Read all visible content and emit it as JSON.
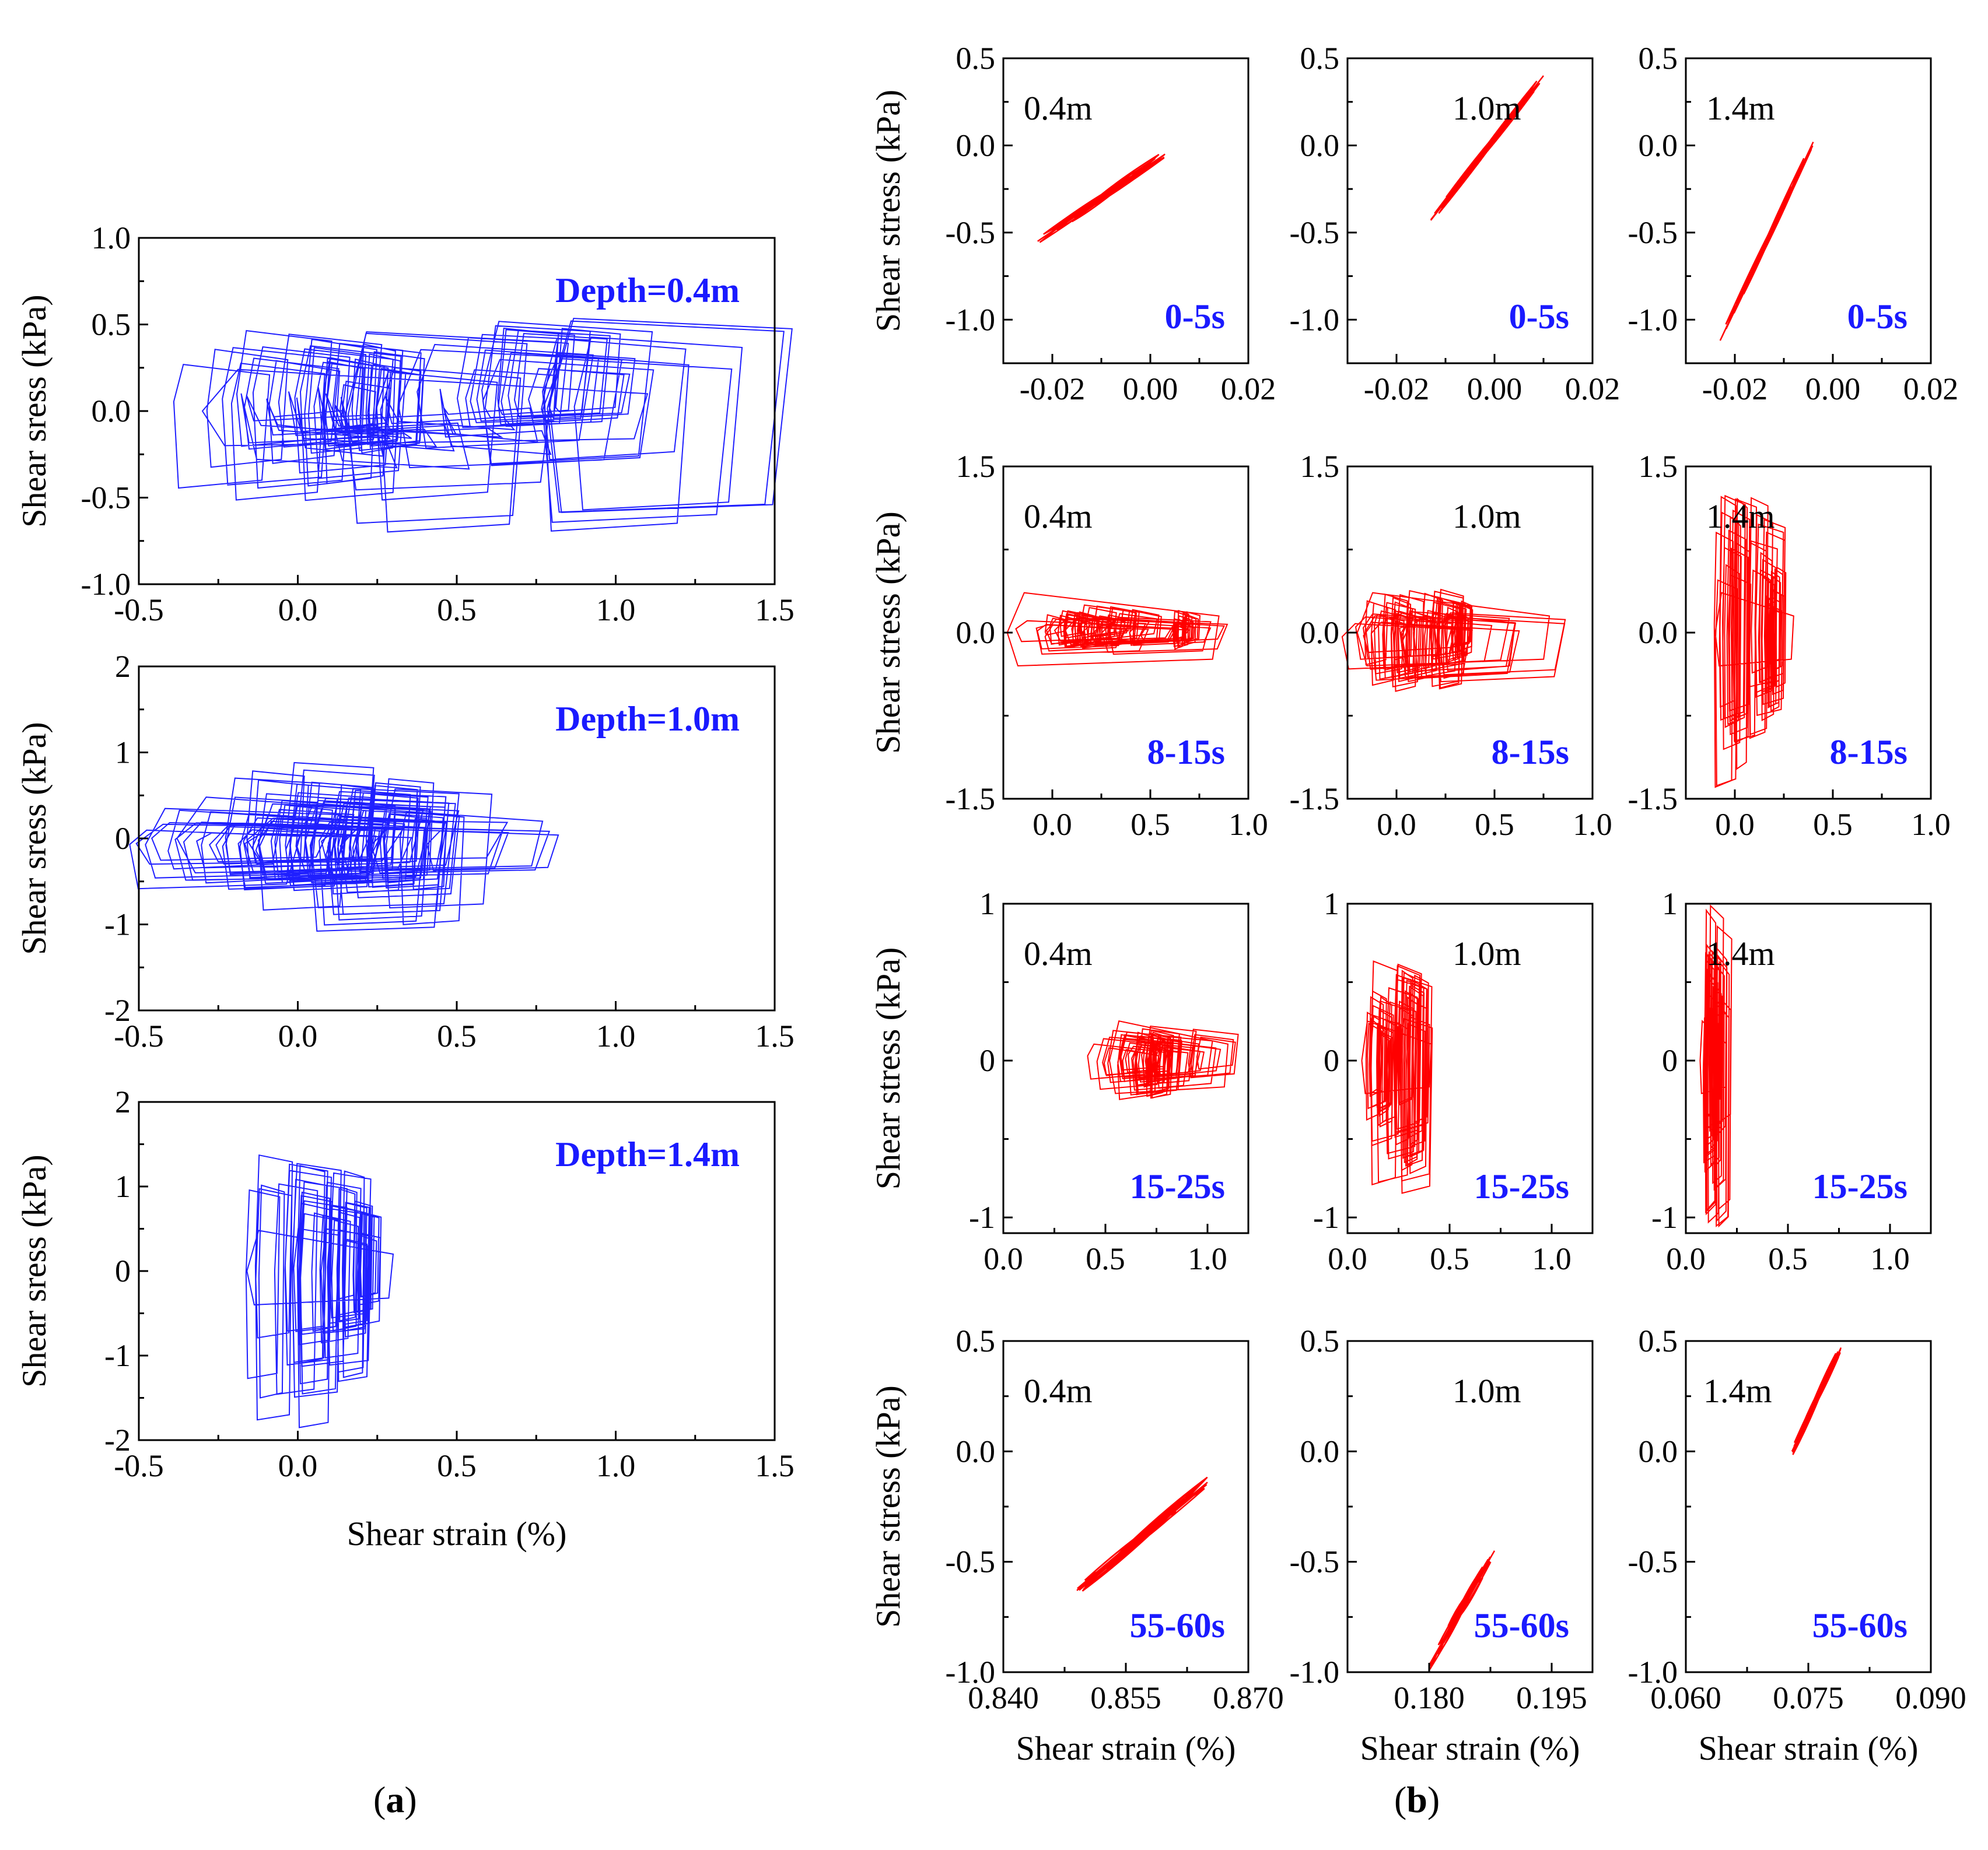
{
  "colors": {
    "panel_a": "#1f1fff",
    "panel_b": "#ff0000",
    "annotation_blue": "#1a1aff"
  },
  "panel_labels": {
    "a": "a",
    "b": "b"
  },
  "chart_data": [
    {
      "id": "a1",
      "type": "line",
      "ylabel": "Shear sress (kPa)",
      "xlabel": "",
      "annotation": "Depth=0.4m",
      "xlim": [
        -0.5,
        1.5
      ],
      "ylim": [
        -1.0,
        1.0
      ],
      "xticks": [
        "-0.5",
        "0.0",
        "0.5",
        "1.0",
        "1.5"
      ],
      "yticks": [
        "-1.0",
        "-0.5",
        "0.0",
        "0.5",
        "1.0"
      ],
      "series": [
        {
          "loops": [
            [
              0.0,
              0.25,
              0.5,
              0.05,
              -0.55,
              0.15
            ],
            [
              0.85,
              0.5,
              0.55,
              0.05,
              -0.7,
              0.15
            ],
            [
              0.3,
              0.35,
              -0.3,
              0.08,
              -0.2,
              0.12
            ],
            [
              0.75,
              0.25,
              0.5,
              0.05,
              -0.1,
              0.08
            ],
            [
              0.2,
              0.15,
              0.4,
              0.0,
              -0.25,
              0.1
            ]
          ],
          "bounds": [
            -0.3,
            1.1
          ]
        }
      ]
    },
    {
      "id": "a2",
      "type": "line",
      "ylabel": "Shear sress (kPa)",
      "xlabel": "",
      "annotation": "Depth=1.0m",
      "xlim": [
        -0.5,
        1.5
      ],
      "ylim": [
        -2,
        2
      ],
      "xticks": [
        "-0.5",
        "0.0",
        "0.5",
        "1.0",
        "1.5"
      ],
      "yticks": [
        "-2",
        "-1",
        "0",
        "1",
        "2"
      ],
      "series": [
        {
          "loops": [
            [
              0.0,
              0.2,
              0.9,
              -0.05,
              -0.6,
              0.15
            ],
            [
              0.18,
              0.3,
              0.6,
              -0.05,
              -1.1,
              0.15
            ],
            [
              0.3,
              0.15,
              0.7,
              -0.05,
              -0.6,
              0.12
            ],
            [
              0.0,
              0.4,
              0.45,
              -0.1,
              -0.6,
              0.18
            ],
            [
              0.2,
              0.55,
              0.25,
              -0.05,
              -0.6,
              0.12
            ]
          ],
          "bounds": [
            -0.38,
            0.77
          ]
        }
      ]
    },
    {
      "id": "a3",
      "type": "line",
      "ylabel": "Shear sress (kPa)",
      "xlabel": "Shear strain (%)",
      "annotation": "Depth=1.4m",
      "xlim": [
        -0.5,
        1.5
      ],
      "ylim": [
        -2,
        2
      ],
      "xticks": [
        "-0.5",
        "0.0",
        "0.5",
        "1.0",
        "1.5"
      ],
      "yticks": [
        "-2",
        "-1",
        "0",
        "1",
        "2"
      ],
      "series": [
        {
          "loops": [
            [
              0.0,
              0.12,
              1.4,
              0.0,
              -1.9,
              0.2
            ],
            [
              0.1,
              0.1,
              1.3,
              0.0,
              -1.4,
              0.18
            ],
            [
              0.2,
              0.06,
              1.0,
              0.0,
              -0.8,
              0.15
            ]
          ],
          "bounds": [
            -0.16,
            0.3
          ]
        }
      ]
    },
    {
      "id": "b11",
      "type": "line",
      "ylabel": "Shear stress (kPa)",
      "xlabel": "",
      "depth": "0.4m",
      "time": "0-5s",
      "xlim": [
        -0.03,
        0.02
      ],
      "ylim": [
        -1.25,
        0.5
      ],
      "xticks": [
        "-0.02",
        "0.00",
        "0.02"
      ],
      "yticks": [
        "-1.0",
        "-0.5",
        "0.0",
        "0.5"
      ],
      "series": [
        {
          "segment": [
            -0.023,
            -0.55,
            0.003,
            -0.05
          ],
          "width": 0.05
        }
      ]
    },
    {
      "id": "b12",
      "type": "line",
      "ylabel": "",
      "xlabel": "",
      "depth": "1.0m",
      "time": "0-5s",
      "xlim": [
        -0.03,
        0.02
      ],
      "ylim": [
        -1.25,
        0.5
      ],
      "xticks": [
        "-0.02",
        "0.00",
        "0.02"
      ],
      "yticks": [
        "-1.0",
        "-0.5",
        "0.0",
        "0.5"
      ],
      "series": [
        {
          "segment": [
            -0.013,
            -0.43,
            0.01,
            0.4
          ],
          "width": 0.05
        }
      ]
    },
    {
      "id": "b13",
      "type": "line",
      "ylabel": "",
      "xlabel": "",
      "depth": "1.4m",
      "time": "0-5s",
      "xlim": [
        -0.03,
        0.02
      ],
      "ylim": [
        -1.25,
        0.5
      ],
      "xticks": [
        "-0.02",
        "0.00",
        "0.02"
      ],
      "yticks": [
        "-1.0",
        "-0.5",
        "0.0",
        "0.5"
      ],
      "series": [
        {
          "segment": [
            -0.023,
            -1.12,
            -0.004,
            0.02
          ],
          "width": 0.05
        }
      ]
    },
    {
      "id": "b21",
      "type": "line",
      "ylabel": "Shear stress (kPa)",
      "xlabel": "",
      "depth": "0.4m",
      "time": "8-15s",
      "xlim": [
        -0.25,
        1.0
      ],
      "ylim": [
        -1.5,
        1.5
      ],
      "xticks": [
        "0.0",
        "0.5",
        "1.0"
      ],
      "yticks": [
        "-1.5",
        "0.0",
        "1.5"
      ],
      "series": [
        {
          "loops": [
            [
              0.1,
              0.12,
              0.2,
              0.05,
              -0.15,
              0.12
            ],
            [
              0.35,
              0.15,
              0.25,
              0.05,
              -0.15,
              0.12
            ],
            [
              0.68,
              0.05,
              0.2,
              0.0,
              -0.15,
              0.08
            ],
            [
              0.3,
              0.5,
              0.15,
              0.0,
              -0.2,
              0.1
            ]
          ],
          "bounds": [
            -0.23,
            0.85
          ]
        }
      ]
    },
    {
      "id": "b22",
      "type": "line",
      "ylabel": "",
      "xlabel": "",
      "depth": "1.0m",
      "time": "8-15s",
      "xlim": [
        -0.25,
        1.0
      ],
      "ylim": [
        -1.5,
        1.5
      ],
      "xticks": [
        "0.0",
        "0.5",
        "1.0"
      ],
      "yticks": [
        "-1.5",
        "0.0",
        "1.5"
      ],
      "series": [
        {
          "loops": [
            [
              0.0,
              0.12,
              0.35,
              0.0,
              -0.55,
              0.15
            ],
            [
              0.2,
              0.12,
              0.4,
              0.0,
              -0.55,
              0.15
            ],
            [
              0.32,
              0.05,
              0.3,
              0.0,
              -0.3,
              0.1
            ],
            [
              0.2,
              0.5,
              0.2,
              0.0,
              -0.45,
              0.15
            ]
          ],
          "bounds": [
            -0.2,
            0.78
          ]
        }
      ]
    },
    {
      "id": "b23",
      "type": "line",
      "ylabel": "",
      "xlabel": "",
      "depth": "1.4m",
      "time": "8-15s",
      "xlim": [
        -0.25,
        1.0
      ],
      "ylim": [
        -1.5,
        1.5
      ],
      "xticks": [
        "0.0",
        "0.5",
        "1.0"
      ],
      "yticks": [
        "-1.5",
        "0.0",
        "1.5"
      ],
      "series": [
        {
          "loops": [
            [
              0.0,
              0.08,
              1.3,
              0.0,
              -1.45,
              0.2
            ],
            [
              0.12,
              0.1,
              1.25,
              0.0,
              -1.0,
              0.18
            ],
            [
              0.2,
              0.04,
              0.6,
              0.0,
              -0.75,
              0.12
            ]
          ],
          "bounds": [
            -0.1,
            0.3
          ]
        }
      ]
    },
    {
      "id": "b31",
      "type": "line",
      "ylabel": "Shear stress (kPa)",
      "xlabel": "",
      "depth": "0.4m",
      "time": "15-25s",
      "xlim": [
        0.0,
        1.2
      ],
      "ylim": [
        -1.1,
        1.0
      ],
      "xticks": [
        "0.0",
        "0.5",
        "1.0"
      ],
      "yticks": [
        "-1",
        "0",
        "1"
      ],
      "series": [
        {
          "loops": [
            [
              0.75,
              0.25,
              0.2,
              0.0,
              -0.25,
              0.1
            ],
            [
              0.85,
              0.25,
              0.22,
              0.0,
              -0.15,
              0.08
            ],
            [
              0.75,
              0.08,
              0.2,
              0.0,
              -0.25,
              0.08
            ]
          ],
          "bounds": [
            0.52,
            1.1
          ]
        }
      ]
    },
    {
      "id": "b32",
      "type": "line",
      "ylabel": "",
      "xlabel": "",
      "depth": "1.0m",
      "time": "15-25s",
      "xlim": [
        0.0,
        1.2
      ],
      "ylim": [
        -1.1,
        1.0
      ],
      "xticks": [
        "0.0",
        "0.5",
        "1.0"
      ],
      "yticks": [
        "-1",
        "0",
        "1"
      ],
      "series": [
        {
          "loops": [
            [
              0.25,
              0.12,
              0.65,
              0.0,
              -0.85,
              0.15
            ],
            [
              0.18,
              0.06,
              0.45,
              0.0,
              -0.5,
              0.12
            ],
            [
              0.32,
              0.07,
              0.6,
              0.0,
              -0.7,
              0.12
            ]
          ],
          "bounds": [
            0.07,
            0.41
          ]
        }
      ]
    },
    {
      "id": "b33",
      "type": "line",
      "ylabel": "",
      "xlabel": "",
      "depth": "1.4m",
      "time": "15-25s",
      "xlim": [
        0.0,
        1.2
      ],
      "ylim": [
        -1.1,
        1.0
      ],
      "xticks": [
        "0.0",
        "0.5",
        "1.0"
      ],
      "yticks": [
        "-1",
        "0",
        "1"
      ],
      "series": [
        {
          "loops": [
            [
              0.15,
              0.05,
              1.0,
              0.0,
              -1.1,
              0.2
            ],
            [
              0.13,
              0.04,
              0.7,
              0.0,
              -0.8,
              0.15
            ]
          ],
          "bounds": [
            0.07,
            0.2
          ]
        }
      ]
    },
    {
      "id": "b41",
      "type": "line",
      "ylabel": "Shear stress (kPa)",
      "xlabel": "Shear strain (%)",
      "depth": "0.4m",
      "time": "55-60s",
      "xlim": [
        0.84,
        0.87
      ],
      "ylim": [
        -1.0,
        0.5
      ],
      "xticks": [
        "0.840",
        "0.855",
        "0.870"
      ],
      "yticks": [
        "-1.0",
        "-0.5",
        "0.0",
        "0.5"
      ],
      "series": [
        {
          "segment": [
            0.849,
            -0.63,
            0.865,
            -0.14
          ],
          "width": 0.06
        }
      ]
    },
    {
      "id": "b42",
      "type": "line",
      "ylabel": "",
      "xlabel": "Shear strain (%)",
      "depth": "1.0m",
      "time": "55-60s",
      "xlim": [
        0.17,
        0.2
      ],
      "ylim": [
        -1.0,
        0.5
      ],
      "xticks": [
        "0.180",
        "0.195"
      ],
      "yticks": [
        "-1.0",
        "-0.5",
        "0.0",
        "0.5"
      ],
      "series": [
        {
          "segment": [
            0.18,
            -0.97,
            0.188,
            -0.45
          ],
          "width": 0.06
        }
      ]
    },
    {
      "id": "b43",
      "type": "line",
      "ylabel": "",
      "xlabel": "Shear strain (%)",
      "depth": "1.4m",
      "time": "55-60s",
      "xlim": [
        0.06,
        0.09
      ],
      "ylim": [
        -1.0,
        0.5
      ],
      "xticks": [
        "0.060",
        "0.075",
        "0.090"
      ],
      "yticks": [
        "-1.0",
        "-0.5",
        "0.0",
        "0.5"
      ],
      "series": [
        {
          "segment": [
            0.073,
            0.0,
            0.079,
            0.47
          ],
          "width": 0.05
        }
      ]
    }
  ]
}
